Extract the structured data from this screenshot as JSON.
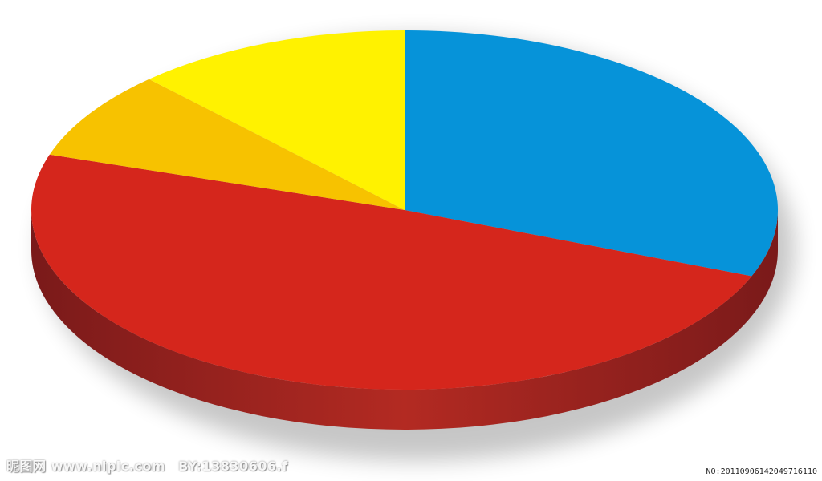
{
  "chart_data": {
    "type": "pie",
    "style": "3d",
    "slices": [
      {
        "label": "",
        "value": 31,
        "color": "#0693d9"
      },
      {
        "label": "",
        "value": 49,
        "color": "#d5261c"
      },
      {
        "label": "",
        "value": 8,
        "color": "#f7c200"
      },
      {
        "label": "",
        "value": 12,
        "color": "#fff200"
      }
    ],
    "title": "",
    "legend": "none"
  },
  "watermark": {
    "site": "昵图网 www.nipic.com",
    "author": "BY:13830606.f",
    "id": "NO:20110906142049716110"
  },
  "colors": {
    "side_dark": "#7a1a1a",
    "side_light": "#b32a22"
  }
}
